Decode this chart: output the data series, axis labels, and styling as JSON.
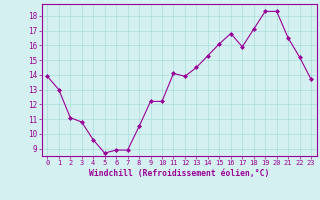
{
  "x": [
    0,
    1,
    2,
    3,
    4,
    5,
    6,
    7,
    8,
    9,
    10,
    11,
    12,
    13,
    14,
    15,
    16,
    17,
    18,
    19,
    20,
    21,
    22,
    23
  ],
  "y": [
    13.9,
    13.0,
    11.1,
    10.8,
    9.6,
    8.7,
    8.9,
    8.9,
    10.5,
    12.2,
    12.2,
    14.1,
    13.9,
    14.5,
    15.3,
    16.1,
    16.8,
    15.9,
    17.1,
    18.3,
    18.3,
    16.5,
    15.2,
    13.7
  ],
  "line_color": "#990099",
  "marker": "D",
  "marker_size": 2.0,
  "background_color": "#d5f0f0",
  "grid_color": "#aadddd",
  "ylabel_ticks": [
    9,
    10,
    11,
    12,
    13,
    14,
    15,
    16,
    17,
    18
  ],
  "ylim": [
    8.5,
    18.8
  ],
  "xlim": [
    -0.5,
    23.5
  ],
  "xlabel": "Windchill (Refroidissement éolien,°C)",
  "tick_color": "#990099",
  "axis_color": "#990099",
  "font_color": "#990099",
  "xlabel_fontsize": 5.8,
  "xtick_fontsize": 5.0,
  "ytick_fontsize": 5.5
}
